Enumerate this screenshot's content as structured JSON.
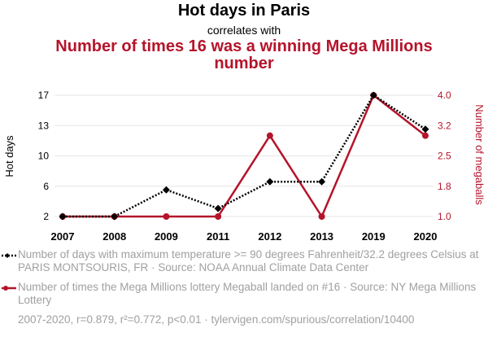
{
  "chart_data": {
    "type": "line",
    "title": "Hot days in Paris",
    "subtitle": "correlates with",
    "title2": "Number of times 16 was a winning Mega Millions number",
    "categories": [
      "2007",
      "2008",
      "2009",
      "2011",
      "2012",
      "2013",
      "2019",
      "2020"
    ],
    "series": [
      {
        "name": "Number of days with maximum temperature >= 90 degrees Fahrenheit/32.2 degrees Celsius at PARIS MONTSOURIS, FR · Source: NOAA Annual Climate Data Center",
        "axis": "left",
        "color": "#000000",
        "style": "dotted",
        "marker": "diamond",
        "values": [
          2,
          2,
          5.3,
          3,
          6.3,
          6.3,
          17,
          12.8
        ]
      },
      {
        "name": "Number of times the Mega Millions lottery Megaball landed on #16 · Source: NY Mega Millions Lottery",
        "axis": "right",
        "color": "#b5142b",
        "style": "solid",
        "marker": "circle",
        "values": [
          1,
          1,
          1,
          1,
          3,
          1,
          4,
          3
        ]
      }
    ],
    "ylabel_left": "Hot days",
    "ylabel_right": "Number of megaballs",
    "yticks_left": [
      "2",
      "6",
      "10",
      "13",
      "17"
    ],
    "yticks_right": [
      "1.0",
      "1.8",
      "2.5",
      "3.2",
      "4.0"
    ],
    "ylim_left": [
      2,
      17
    ],
    "ylim_right": [
      1,
      4
    ],
    "grid": true,
    "legend_position": "bottom"
  },
  "footer": "2007-2020, r=0.879, r²=0.772, p<0.01 · tylervigen.com/spurious/correlation/10400",
  "colors": {
    "left_series": "#000000",
    "right_series": "#b5142b",
    "grid": "#e6e6e6"
  }
}
